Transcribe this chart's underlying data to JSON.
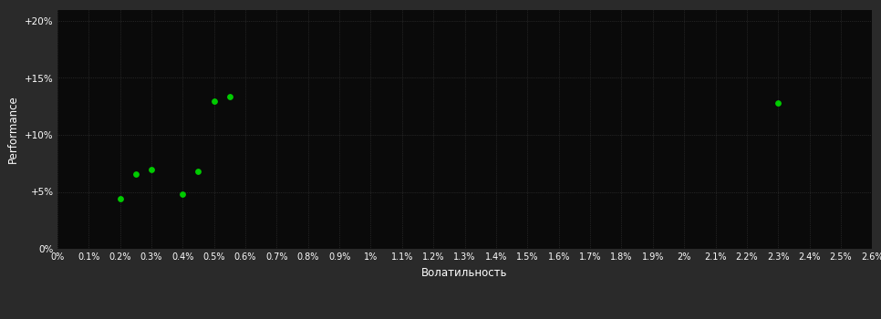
{
  "background_color": "#2a2a2a",
  "plot_bg_color": "#0a0a0a",
  "grid_color": "#3a3a3a",
  "text_color": "#ffffff",
  "dot_color": "#00cc00",
  "xlabel": "Волатильность",
  "ylabel": "Performance",
  "xlim": [
    0.0,
    0.026
  ],
  "ylim": [
    0.0,
    0.21
  ],
  "xtick_step": 0.001,
  "ytick_step": 0.05,
  "points": [
    [
      0.002,
      0.044
    ],
    [
      0.0025,
      0.066
    ],
    [
      0.003,
      0.07
    ],
    [
      0.004,
      0.048
    ],
    [
      0.0045,
      0.068
    ],
    [
      0.005,
      0.13
    ],
    [
      0.0055,
      0.134
    ],
    [
      0.023,
      0.128
    ]
  ]
}
